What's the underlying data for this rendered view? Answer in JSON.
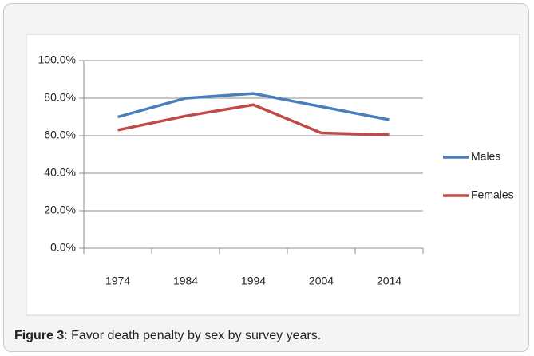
{
  "chart_data": {
    "type": "line",
    "categories": [
      "1974",
      "1984",
      "1994",
      "2004",
      "2014"
    ],
    "series": [
      {
        "name": "Males",
        "color": "#4a7ebb",
        "values": [
          70,
          80,
          82.5,
          75.5,
          68.5
        ]
      },
      {
        "name": "Females",
        "color": "#be4b48",
        "values": [
          63,
          70.5,
          76.5,
          61.5,
          60.5
        ]
      }
    ],
    "ylim": [
      0,
      100
    ],
    "yticks": [
      {
        "value": 0,
        "label": "0.0%"
      },
      {
        "value": 20,
        "label": "20.0%"
      },
      {
        "value": 40,
        "label": "40.0%"
      },
      {
        "value": 60,
        "label": "60.0%"
      },
      {
        "value": 80,
        "label": "80.0%"
      },
      {
        "value": 100,
        "label": "100.0%"
      }
    ],
    "grid": true,
    "legend": "right"
  },
  "caption": {
    "label": "Figure 3",
    "text": ": Favor death penalty by sex by survey years."
  }
}
